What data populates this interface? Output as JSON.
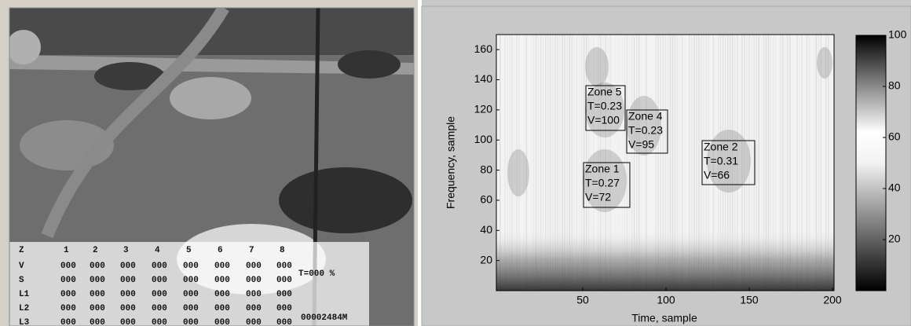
{
  "video_overlay": {
    "header": [
      "Z",
      "1",
      "2",
      "3",
      "4",
      "5",
      "6",
      "7",
      "8"
    ],
    "rows": [
      {
        "label": "V",
        "cells": [
          "000",
          "000",
          "000",
          "000",
          "000",
          "000",
          "000",
          "000"
        ]
      },
      {
        "label": "S",
        "cells": [
          "000",
          "000",
          "000",
          "000",
          "000",
          "000",
          "000",
          "000"
        ]
      },
      {
        "label": "L1",
        "cells": [
          "000",
          "000",
          "000",
          "000",
          "000",
          "000",
          "000",
          "000"
        ]
      },
      {
        "label": "L2",
        "cells": [
          "000",
          "000",
          "000",
          "000",
          "000",
          "000",
          "000",
          "000"
        ]
      },
      {
        "label": "L3",
        "cells": [
          "000",
          "000",
          "000",
          "000",
          "000",
          "000",
          "000",
          "000"
        ]
      }
    ],
    "t_label": "T=000 %",
    "counter": "00002484M"
  },
  "chart_data": {
    "type": "heatmap",
    "x_label": "Time, sample",
    "y_label": "Frequency, sample",
    "xlim": [
      0,
      200
    ],
    "xticks": [
      50,
      100,
      150,
      200
    ],
    "ylim": [
      0,
      170
    ],
    "yticks": [
      20,
      40,
      60,
      80,
      100,
      120,
      140,
      160
    ],
    "colorbar": {
      "lim": [
        0,
        100
      ],
      "ticks": [
        20,
        40,
        60,
        80,
        100
      ]
    },
    "annotations": [
      {
        "lines": [
          "Zone 5",
          "T=0.23",
          "V=100"
        ]
      },
      {
        "lines": [
          "Zone 4",
          "T=0.23",
          "V=95"
        ]
      },
      {
        "lines": [
          "Zone 2",
          "T=0.31",
          "V=66"
        ]
      },
      {
        "lines": [
          "Zone 1",
          "T=0.27",
          "V=72"
        ]
      }
    ]
  }
}
